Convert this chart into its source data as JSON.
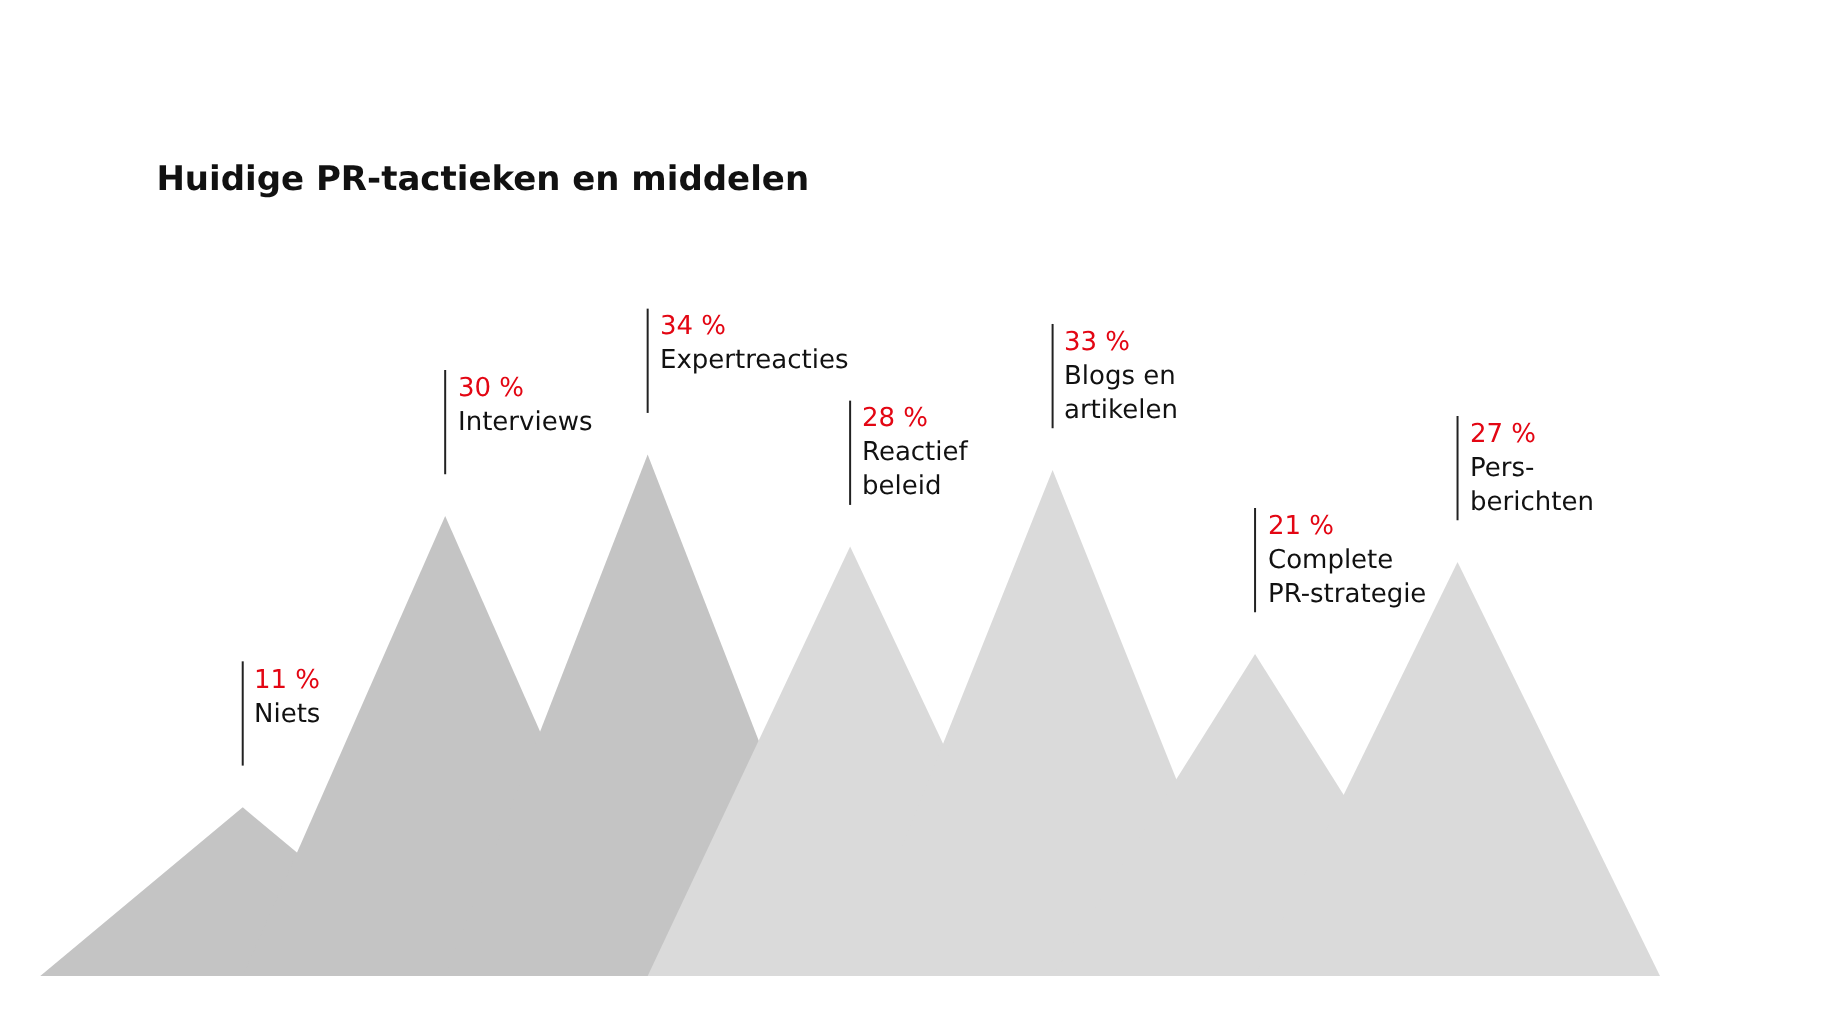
{
  "chart_data": {
    "type": "other",
    "title": "Huidige PR-tactieken en middelen",
    "categories": [
      "Niets",
      "Interviews",
      "Expertreacties",
      "Reactief\nbeleid",
      "Blogs en\nartikelen",
      "Complete\nPR-strategie",
      "Pers-\nberichten"
    ],
    "values": [
      11,
      30,
      34,
      28,
      33,
      21,
      27
    ],
    "value_labels": [
      "11 %",
      "30 %",
      "34 %",
      "28 %",
      "33 %",
      "21 %",
      "27 %"
    ],
    "colors": [
      "#c4c4c4",
      "#c4c4c4",
      "#c4c4c4",
      "#dadada",
      "#dadada",
      "#dadada",
      "#dadada"
    ]
  }
}
